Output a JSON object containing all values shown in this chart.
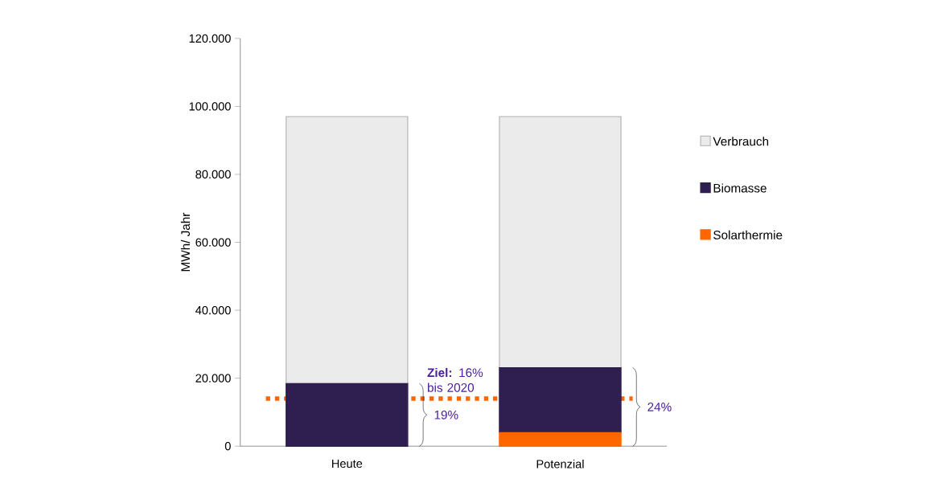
{
  "chart_data": {
    "type": "bar",
    "stacked": true,
    "categories": [
      "Heute",
      "Potenzial"
    ],
    "ylabel": "MWh/ Jahr",
    "series": [
      {
        "name": "Solarthermie",
        "color": "#ff6600",
        "values": [
          0,
          4000
        ]
      },
      {
        "name": "Biomasse",
        "color": "#2e1f50",
        "values": [
          18400,
          19100
        ]
      },
      {
        "name": "Verbrauch",
        "color": "#ebebeb",
        "values": [
          78600,
          73900
        ]
      }
    ],
    "ylim": [
      0,
      120000
    ],
    "yticks": [
      {
        "value": 0,
        "label": "0"
      },
      {
        "value": 20000,
        "label": "20.000"
      },
      {
        "value": 40000,
        "label": "40.000"
      },
      {
        "value": 60000,
        "label": "60.000"
      },
      {
        "value": 80000,
        "label": "80.000"
      },
      {
        "value": 100000,
        "label": "100.000"
      },
      {
        "value": 120000,
        "label": "120.000"
      }
    ],
    "ref_lines": [
      {
        "axis": "y",
        "value": 14000,
        "label": "**Ziel:** 16% bis 2020",
        "color": "#ff6600",
        "line_style": "dotted"
      }
    ],
    "annotations": [
      "19%",
      "24%"
    ],
    "legend": "right"
  }
}
